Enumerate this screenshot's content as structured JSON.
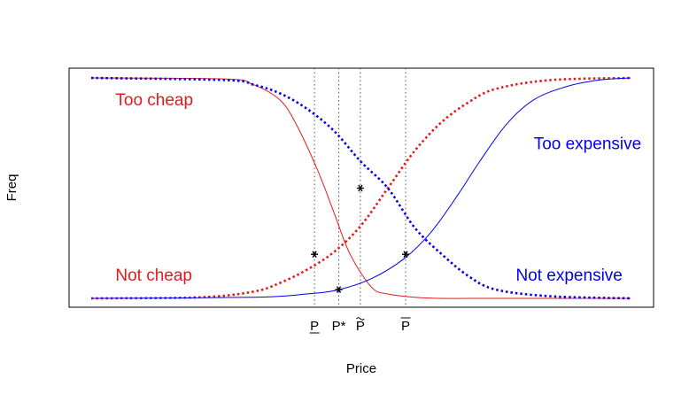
{
  "chart_data": {
    "type": "line",
    "title": "",
    "xlabel": "Price",
    "ylabel": "Freq",
    "xlim": [
      0,
      1
    ],
    "ylim": [
      0,
      1
    ],
    "grid": false,
    "legend": "none",
    "series": [
      {
        "curve": "too_cheap",
        "color": "#e31a1c",
        "style": "solid",
        "x": [
          0.0,
          0.25,
          0.3,
          0.35,
          0.38,
          0.42,
          0.45,
          0.48,
          0.52,
          0.55,
          0.6,
          0.65,
          0.75,
          1.0
        ],
        "values": [
          1.0,
          0.995,
          0.97,
          0.9,
          0.79,
          0.58,
          0.39,
          0.2,
          0.05,
          0.02,
          0.005,
          0.0,
          0.0,
          0.0
        ]
      },
      {
        "curve": "not_cheap",
        "color": "#e31a1c",
        "style": "dotted",
        "x": [
          0.0,
          0.2,
          0.3,
          0.35,
          0.4,
          0.45,
          0.5,
          0.55,
          0.6,
          0.65,
          0.7,
          0.75,
          0.85,
          1.0
        ],
        "values": [
          0.0,
          0.005,
          0.03,
          0.07,
          0.13,
          0.21,
          0.33,
          0.5,
          0.67,
          0.8,
          0.89,
          0.95,
          0.99,
          1.0
        ]
      },
      {
        "curve": "not_expensive",
        "color": "#0000ee",
        "style": "dotted",
        "x": [
          0.0,
          0.25,
          0.3,
          0.35,
          0.4,
          0.45,
          0.5,
          0.55,
          0.6,
          0.65,
          0.7,
          0.75,
          0.85,
          1.0
        ],
        "values": [
          1.0,
          0.99,
          0.97,
          0.93,
          0.86,
          0.76,
          0.62,
          0.5,
          0.32,
          0.2,
          0.1,
          0.04,
          0.01,
          0.0
        ]
      },
      {
        "curve": "too_expensive",
        "color": "#0000ee",
        "style": "solid",
        "x": [
          0.0,
          0.3,
          0.4,
          0.46,
          0.52,
          0.58,
          0.63,
          0.68,
          0.72,
          0.77,
          0.82,
          0.88,
          0.94,
          1.0
        ],
        "values": [
          0.0,
          0.005,
          0.02,
          0.04,
          0.09,
          0.18,
          0.3,
          0.47,
          0.62,
          0.79,
          0.9,
          0.96,
          0.99,
          1.0
        ]
      }
    ],
    "region_labels": [
      {
        "text": "Too cheap",
        "color": "#e31a1c",
        "x": 0.045,
        "y": 0.9,
        "anchor": "start"
      },
      {
        "text": "Not cheap",
        "color": "#e31a1c",
        "x": 0.045,
        "y": 0.105,
        "anchor": "start"
      },
      {
        "text": "Too expensive",
        "color": "#0000ee",
        "x": 1.02,
        "y": 0.7,
        "anchor": "end"
      },
      {
        "text": "Not expensive",
        "color": "#0000ee",
        "x": 0.985,
        "y": 0.105,
        "anchor": "end"
      }
    ],
    "price_points": [
      {
        "label": "P",
        "decoration": "underline",
        "x": 0.414,
        "y": 0.2
      },
      {
        "label": "P*",
        "decoration": "none",
        "x": 0.459,
        "y": 0.04
      },
      {
        "label": "P",
        "decoration": "tilde",
        "x": 0.499,
        "y": 0.5
      },
      {
        "label": "P",
        "decoration": "overline",
        "x": 0.583,
        "y": 0.2
      }
    ]
  }
}
